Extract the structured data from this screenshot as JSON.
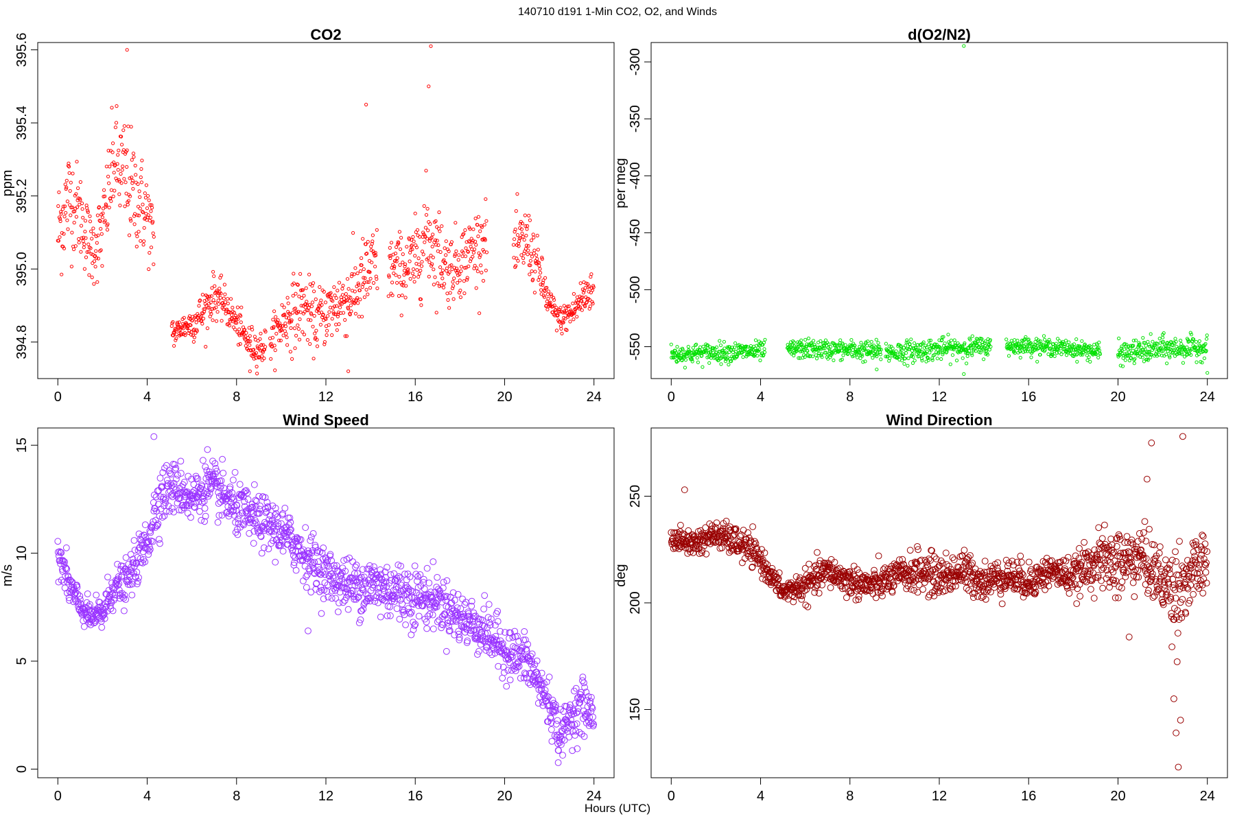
{
  "figure": {
    "suptitle": "140710   d191   1-Min CO2, O2, and Winds",
    "xlabel": "Hours (UTC)"
  },
  "chart_data": [
    {
      "id": "co2",
      "type": "scatter",
      "title": "CO2",
      "xlabel": "",
      "ylabel": "ppm",
      "xlim": [
        -0.9,
        24.9
      ],
      "ylim": [
        394.7,
        395.62
      ],
      "xticks": [
        0,
        4,
        8,
        12,
        16,
        20,
        24
      ],
      "yticks": [
        394.8,
        395.0,
        395.2,
        395.4,
        395.6
      ],
      "ytick_labels": [
        "394.8",
        "395.0",
        "395.2",
        "395.4",
        "395.6"
      ],
      "marker": "open-circle",
      "color": "#ff0000",
      "marker_size": "small",
      "x": [
        0.0,
        0.5,
        1.0,
        1.5,
        2.0,
        2.5,
        3.0,
        3.5,
        4.0,
        5.2,
        5.5,
        6.0,
        6.5,
        7.0,
        7.5,
        8.0,
        8.5,
        9.0,
        9.5,
        10.0,
        10.5,
        11.0,
        11.5,
        12.0,
        12.5,
        13.0,
        13.5,
        14.0,
        15.0,
        15.5,
        16.0,
        16.5,
        17.0,
        17.5,
        18.0,
        18.5,
        19.0,
        20.5,
        21.0,
        21.5,
        22.0,
        22.5,
        23.0,
        23.5,
        23.9
      ],
      "y": [
        395.1,
        395.2,
        395.15,
        395.05,
        395.1,
        395.3,
        395.25,
        395.2,
        395.15,
        394.82,
        394.84,
        394.85,
        394.88,
        394.93,
        394.9,
        394.85,
        394.8,
        394.78,
        394.8,
        394.85,
        394.88,
        394.9,
        394.86,
        394.88,
        394.9,
        394.92,
        394.95,
        395.0,
        395.0,
        395.0,
        395.02,
        395.1,
        395.05,
        395.0,
        395.02,
        395.05,
        395.08,
        395.05,
        395.08,
        395.0,
        394.9,
        394.86,
        394.88,
        394.92,
        394.95
      ],
      "y_spread": [
        0.12,
        0.12,
        0.1,
        0.08,
        0.1,
        0.12,
        0.14,
        0.12,
        0.1,
        0.03,
        0.03,
        0.04,
        0.05,
        0.05,
        0.04,
        0.04,
        0.04,
        0.04,
        0.04,
        0.06,
        0.08,
        0.08,
        0.07,
        0.07,
        0.08,
        0.08,
        0.09,
        0.1,
        0.08,
        0.08,
        0.09,
        0.12,
        0.1,
        0.08,
        0.08,
        0.08,
        0.08,
        0.08,
        0.08,
        0.06,
        0.04,
        0.03,
        0.04,
        0.05,
        0.05
      ],
      "outliers": [
        [
          3.1,
          395.6
        ],
        [
          16.7,
          395.61
        ],
        [
          16.6,
          395.5
        ],
        [
          13.8,
          395.45
        ],
        [
          13.0,
          394.72
        ],
        [
          8.6,
          394.72
        ]
      ]
    },
    {
      "id": "o2",
      "type": "scatter",
      "title": "d(O2/N2)",
      "xlabel": "",
      "ylabel": "per meg",
      "xlim": [
        -0.9,
        24.9
      ],
      "ylim": [
        -578,
        -283
      ],
      "xticks": [
        0,
        4,
        8,
        12,
        16,
        20,
        24
      ],
      "yticks": [
        -550,
        -500,
        -450,
        -400,
        -350,
        -300
      ],
      "ytick_labels": [
        "-550",
        "-500",
        "-450",
        "-400",
        "-350",
        "-300"
      ],
      "marker": "open-circle",
      "color": "#00e000",
      "marker_size": "small",
      "segments": [
        [
          0.0,
          4.2
        ],
        [
          5.2,
          9.4
        ],
        [
          9.6,
          14.3
        ],
        [
          15.0,
          19.2
        ],
        [
          20.0,
          24.0
        ]
      ],
      "x": [
        0,
        2,
        4,
        6,
        8,
        10,
        12,
        14,
        16,
        18,
        20,
        22,
        24
      ],
      "y": [
        -557,
        -555,
        -554,
        -552,
        -553,
        -555,
        -552,
        -550,
        -549,
        -552,
        -556,
        -552,
        -551
      ],
      "y_spread": [
        7,
        7,
        7,
        7,
        7,
        8,
        8,
        7,
        6,
        6,
        8,
        9,
        8
      ],
      "outliers": [
        [
          13.1,
          -286
        ],
        [
          22.0,
          -542
        ],
        [
          24.0,
          -573
        ],
        [
          13.1,
          -574
        ],
        [
          9.2,
          -570
        ]
      ]
    },
    {
      "id": "wind-speed",
      "type": "scatter",
      "title": "Wind Speed",
      "xlabel": "",
      "ylabel": "m/s",
      "xlim": [
        -0.9,
        24.9
      ],
      "ylim": [
        -0.4,
        15.8
      ],
      "xticks": [
        0,
        4,
        8,
        12,
        16,
        20,
        24
      ],
      "yticks": [
        0,
        5,
        10,
        15
      ],
      "ytick_labels": [
        "0",
        "5",
        "10",
        "15"
      ],
      "marker": "open-circle",
      "color": "#9933ff",
      "marker_size": "large",
      "x": [
        0.0,
        0.5,
        1.0,
        1.5,
        2.0,
        2.5,
        3.0,
        3.5,
        4.0,
        4.5,
        5.0,
        5.5,
        6.0,
        6.5,
        7.0,
        7.5,
        8.0,
        9.0,
        10.0,
        11.0,
        12.0,
        13.0,
        14.0,
        15.0,
        16.0,
        17.0,
        18.0,
        19.0,
        20.0,
        21.0,
        21.5,
        22.0,
        22.5,
        23.0,
        23.5,
        23.9
      ],
      "y": [
        10.0,
        8.5,
        7.5,
        7.0,
        7.2,
        8.5,
        8.5,
        9.5,
        10.5,
        12.5,
        13.0,
        13.0,
        12.5,
        13.0,
        13.0,
        12.5,
        12.0,
        11.5,
        11.0,
        10.0,
        9.0,
        8.5,
        8.5,
        8.3,
        8.0,
        7.8,
        7.0,
        6.5,
        5.5,
        5.0,
        4.0,
        3.0,
        1.5,
        2.5,
        3.0,
        2.5
      ],
      "y_spread": [
        0.8,
        0.8,
        0.6,
        0.5,
        0.8,
        0.8,
        0.8,
        0.8,
        1.0,
        1.2,
        1.0,
        1.0,
        1.0,
        1.0,
        1.0,
        1.0,
        1.0,
        1.0,
        1.0,
        1.0,
        1.0,
        1.0,
        1.2,
        1.2,
        1.2,
        1.0,
        1.0,
        1.0,
        1.0,
        1.0,
        1.0,
        1.0,
        0.8,
        1.0,
        1.0,
        0.8
      ],
      "outliers": [
        [
          4.3,
          15.4
        ],
        [
          6.7,
          14.8
        ],
        [
          11.2,
          6.4
        ],
        [
          22.4,
          0.3
        ]
      ]
    },
    {
      "id": "wind-direction",
      "type": "scatter",
      "title": "Wind Direction",
      "xlabel": "",
      "ylabel": "deg",
      "xlim": [
        -0.9,
        24.9
      ],
      "ylim": [
        118,
        282
      ],
      "xticks": [
        0,
        4,
        8,
        12,
        16,
        20,
        24
      ],
      "yticks": [
        150,
        200,
        250
      ],
      "ytick_labels": [
        "150",
        "200",
        "250"
      ],
      "marker": "open-circle",
      "color": "#990000",
      "marker_size": "large",
      "x": [
        0.0,
        1.0,
        2.0,
        3.0,
        3.5,
        4.0,
        4.5,
        5.0,
        6.0,
        7.0,
        8.0,
        9.0,
        10.0,
        11.0,
        12.0,
        13.0,
        14.0,
        15.0,
        16.0,
        17.0,
        18.0,
        19.0,
        20.0,
        21.0,
        22.0,
        22.5,
        23.0,
        23.5,
        23.9
      ],
      "y": [
        230,
        228,
        232,
        228,
        225,
        220,
        212,
        205,
        208,
        215,
        210,
        208,
        212,
        215,
        212,
        215,
        210,
        213,
        210,
        215,
        212,
        220,
        218,
        222,
        210,
        205,
        210,
        215,
        218
      ],
      "y_spread": [
        4,
        5,
        5,
        6,
        6,
        5,
        4,
        4,
        6,
        6,
        6,
        6,
        6,
        8,
        8,
        8,
        7,
        7,
        7,
        6,
        7,
        10,
        14,
        12,
        12,
        20,
        14,
        12,
        10
      ],
      "outliers": [
        [
          22.7,
          123
        ],
        [
          22.6,
          139
        ],
        [
          22.8,
          145
        ],
        [
          22.5,
          155
        ],
        [
          21.5,
          275
        ],
        [
          22.9,
          278
        ],
        [
          21.3,
          258
        ],
        [
          20.5,
          184
        ],
        [
          0.6,
          253
        ]
      ]
    }
  ]
}
